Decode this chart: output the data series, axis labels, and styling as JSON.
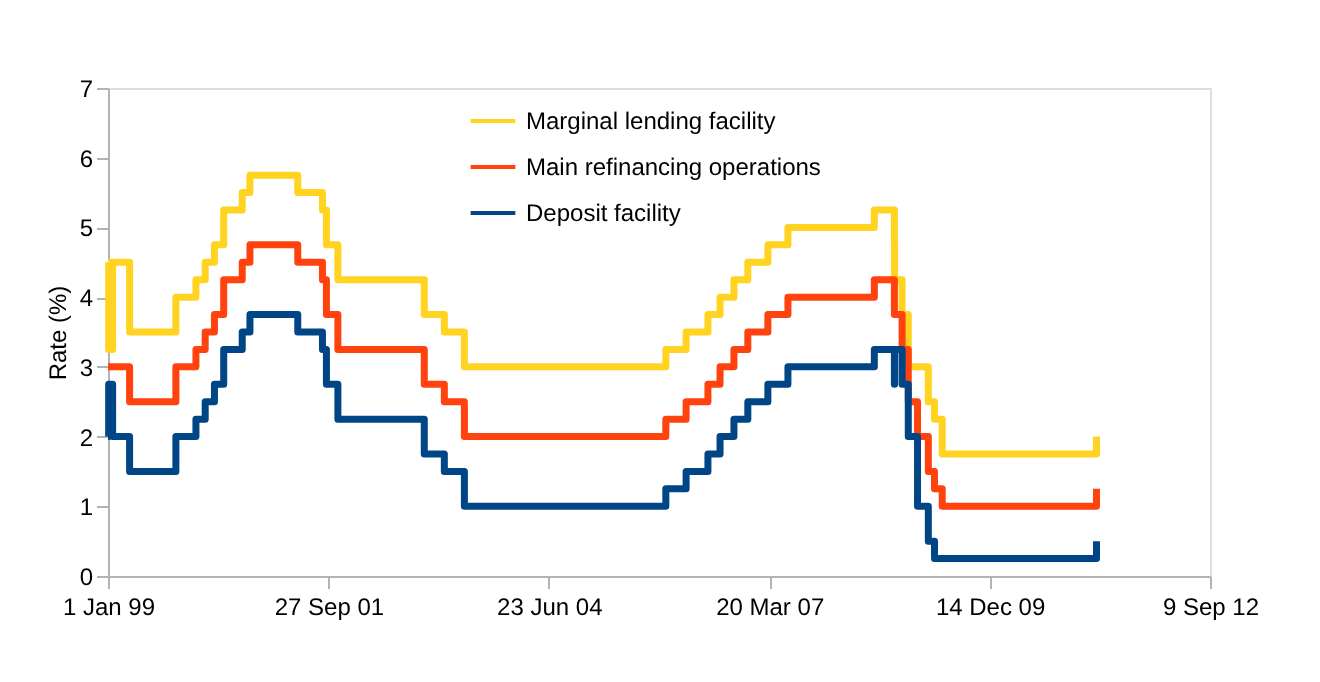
{
  "chart_data": {
    "type": "step",
    "ylabel": "Rate (%)",
    "x": [
      "1999-01-01",
      "1999-01-04",
      "1999-01-22",
      "1999-04-09",
      "1999-11-05",
      "2000-02-04",
      "2000-03-17",
      "2000-04-28",
      "2000-06-09",
      "2000-09-01",
      "2000-10-06",
      "2001-05-11",
      "2001-08-31",
      "2001-09-18",
      "2001-11-09",
      "2002-12-06",
      "2003-03-07",
      "2003-06-06",
      "2005-12-06",
      "2006-03-08",
      "2006-06-15",
      "2006-08-09",
      "2006-10-11",
      "2006-12-13",
      "2007-03-14",
      "2007-06-13",
      "2008-07-09",
      "2008-10-08",
      "2008-10-09",
      "2008-11-12",
      "2008-12-10",
      "2009-01-21",
      "2009-03-11",
      "2009-04-08",
      "2009-05-13",
      "2011-04-13"
    ],
    "series": [
      {
        "name": "Marginal lending facility",
        "color": "#ffd320",
        "values": [
          4.5,
          3.25,
          4.5,
          3.5,
          4.0,
          4.25,
          4.5,
          4.75,
          5.25,
          5.5,
          5.75,
          5.5,
          5.25,
          4.75,
          4.25,
          3.75,
          3.5,
          3.0,
          3.25,
          3.5,
          3.75,
          4.0,
          4.25,
          4.5,
          4.75,
          5.0,
          5.25,
          4.75,
          4.25,
          3.75,
          3.0,
          3.0,
          2.5,
          2.25,
          1.75,
          2.0
        ]
      },
      {
        "name": "Main refinancing operations",
        "color": "#ff420e",
        "values": [
          3.0,
          3.0,
          3.0,
          2.5,
          3.0,
          3.25,
          3.5,
          3.75,
          4.25,
          4.5,
          4.75,
          4.5,
          4.25,
          3.75,
          3.25,
          2.75,
          2.5,
          2.0,
          2.25,
          2.5,
          2.75,
          3.0,
          3.25,
          3.5,
          3.75,
          4.0,
          4.25,
          3.75,
          3.75,
          3.25,
          2.5,
          2.0,
          1.5,
          1.25,
          1.0,
          1.25
        ]
      },
      {
        "name": "Deposit facility",
        "color": "#004586",
        "values": [
          2.0,
          2.75,
          2.0,
          1.5,
          2.0,
          2.25,
          2.5,
          2.75,
          3.25,
          3.5,
          3.75,
          3.5,
          3.25,
          2.75,
          2.25,
          1.75,
          1.5,
          1.0,
          1.25,
          1.5,
          1.75,
          2.0,
          2.25,
          2.5,
          2.75,
          3.0,
          3.25,
          2.75,
          3.25,
          2.75,
          2.0,
          1.0,
          0.5,
          0.25,
          0.25,
          0.5
        ]
      }
    ],
    "xlim": [
      "1999-01-01",
      "2012-09-09"
    ],
    "xticks": [
      {
        "value": "1999-01-01",
        "label": "1 Jan 99"
      },
      {
        "value": "2001-09-27",
        "label": "27 Sep 01"
      },
      {
        "value": "2004-06-23",
        "label": "23 Jun 04"
      },
      {
        "value": "2007-03-20",
        "label": "20 Mar 07"
      },
      {
        "value": "2009-12-14",
        "label": "14 Dec 09"
      },
      {
        "value": "2012-09-09",
        "label": "9 Sep 12"
      }
    ],
    "ylim": [
      0,
      7
    ],
    "yticks": [
      0,
      1,
      2,
      3,
      4,
      5,
      6,
      7
    ],
    "grid": false,
    "legend": "top",
    "line_style": "solid"
  }
}
